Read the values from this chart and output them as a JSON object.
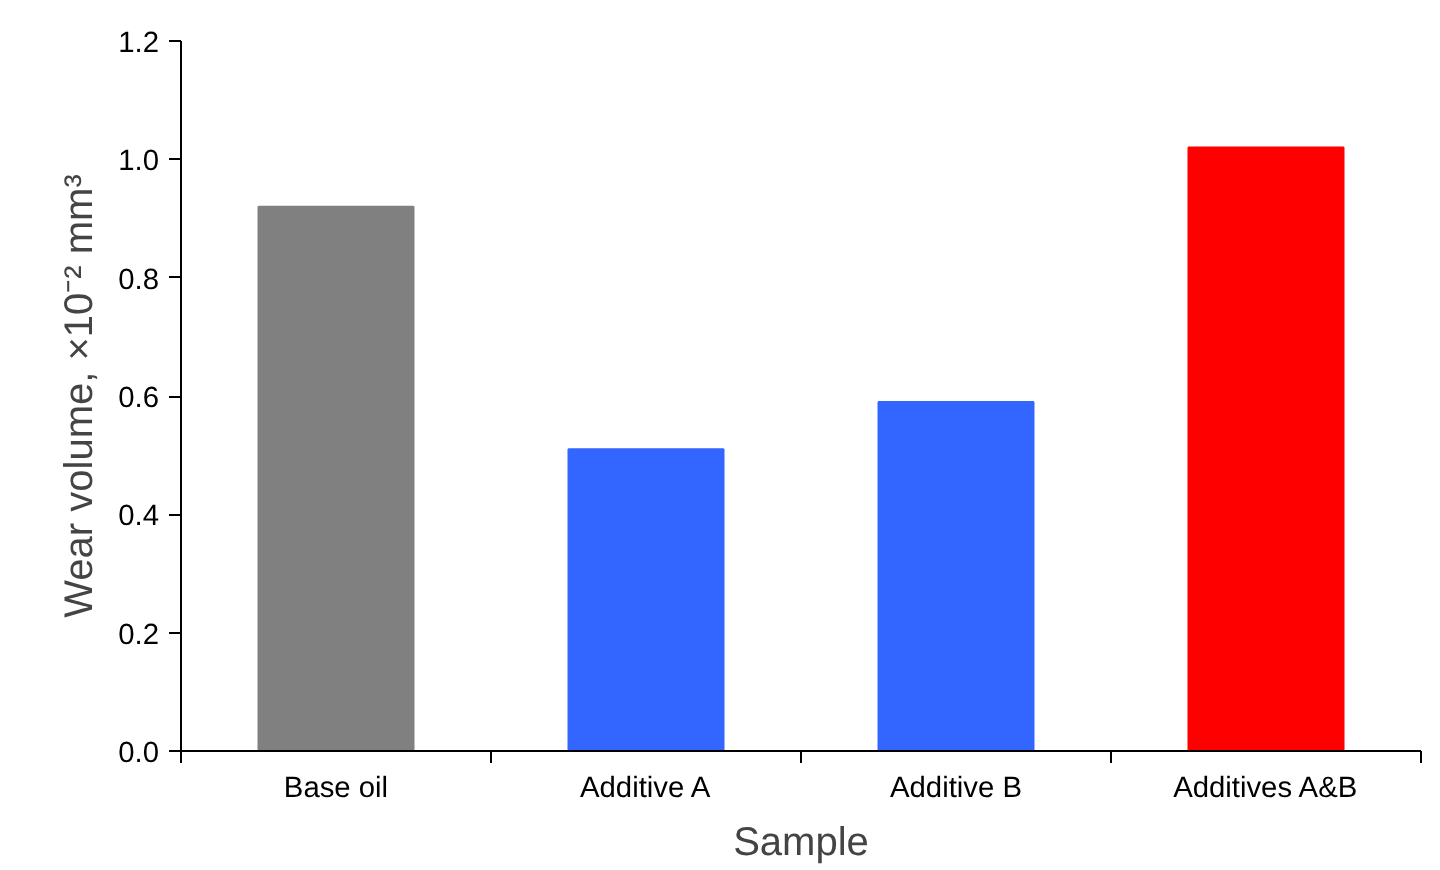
{
  "chart_data": {
    "type": "bar",
    "xlabel": "Sample",
    "ylabel": "Wear volume, ×10⁻² mm³",
    "categories": [
      "Base oil",
      "Additive A",
      "Additive B",
      "Additives A&B"
    ],
    "values": [
      0.92,
      0.51,
      0.59,
      1.02
    ],
    "colors": [
      "#808080",
      "#3366ff",
      "#3366ff",
      "#ff0000"
    ],
    "ylim": [
      0,
      1.2
    ],
    "yticks": [
      {
        "value": 0,
        "label": "0.0"
      },
      0.2,
      0.4,
      0.6,
      0.8,
      {
        "value": 1,
        "label": "1.0"
      },
      1.2
    ],
    "grid": false
  }
}
